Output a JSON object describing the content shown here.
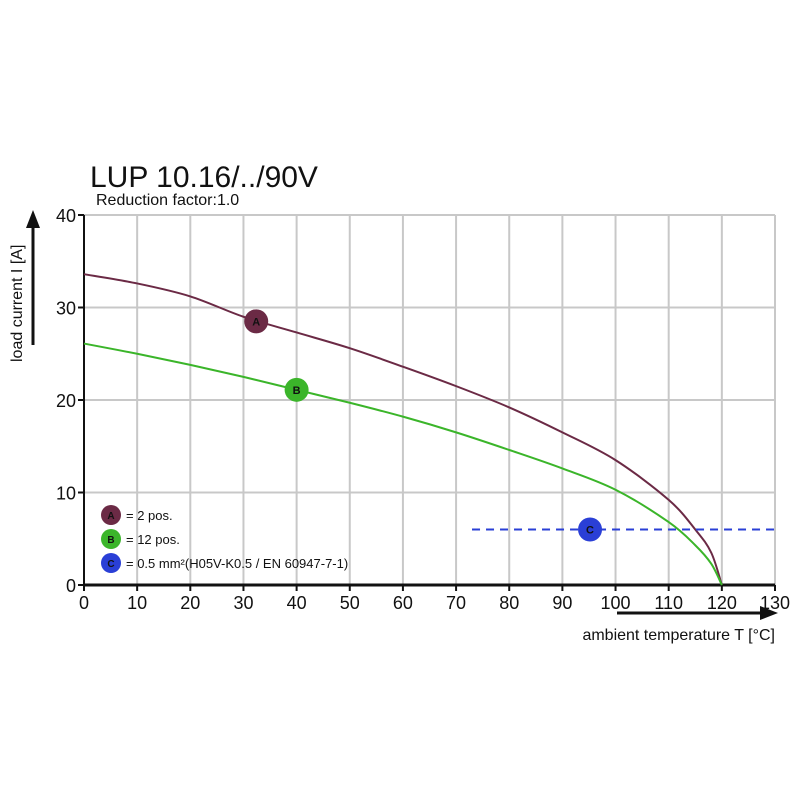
{
  "chart_data": {
    "type": "line",
    "title": "LUP 10.16/../90V",
    "subtitle": "Reduction factor:1.0",
    "xlabel": "ambient temperature T [°C]",
    "ylabel": "load current I [A]",
    "xlim": [
      0,
      130
    ],
    "ylim": [
      0,
      40
    ],
    "xticks": [
      0,
      10,
      20,
      30,
      40,
      50,
      60,
      70,
      80,
      90,
      100,
      110,
      120,
      130
    ],
    "yticks": [
      0,
      10,
      20,
      30,
      40
    ],
    "grid": true,
    "legend_placement": "bottom-left",
    "series": [
      {
        "marker_label": "A",
        "legend": "= 2 pos.",
        "color": "#6b2a45",
        "x": [
          0,
          10,
          20,
          30,
          40,
          50,
          60,
          70,
          80,
          90,
          100,
          110,
          115,
          118,
          120
        ],
        "y": [
          33.6,
          32.6,
          31.2,
          29.0,
          27.3,
          25.6,
          23.6,
          21.5,
          19.2,
          16.5,
          13.5,
          9.2,
          6.0,
          3.5,
          0
        ],
        "marker": {
          "x": 32.4,
          "y": 28.5
        }
      },
      {
        "marker_label": "B",
        "legend": "= 12 pos.",
        "color": "#3bb52a",
        "x": [
          0,
          10,
          20,
          30,
          40,
          50,
          60,
          70,
          80,
          90,
          100,
          110,
          115,
          118,
          120
        ],
        "y": [
          26.1,
          25.0,
          23.8,
          22.5,
          21.1,
          19.7,
          18.2,
          16.5,
          14.6,
          12.6,
          10.3,
          6.8,
          4.3,
          2.3,
          0
        ],
        "marker": {
          "x": 40,
          "y": 21.1
        }
      },
      {
        "marker_label": "C",
        "legend": "= 0.5 mm²(H05V-K0.5 / EN 60947-7-1)",
        "color": "#2a3fd6",
        "style": "dashed",
        "x": [
          73,
          130
        ],
        "y": [
          6,
          6
        ],
        "marker": {
          "x": 95.2,
          "y": 6
        }
      }
    ]
  }
}
